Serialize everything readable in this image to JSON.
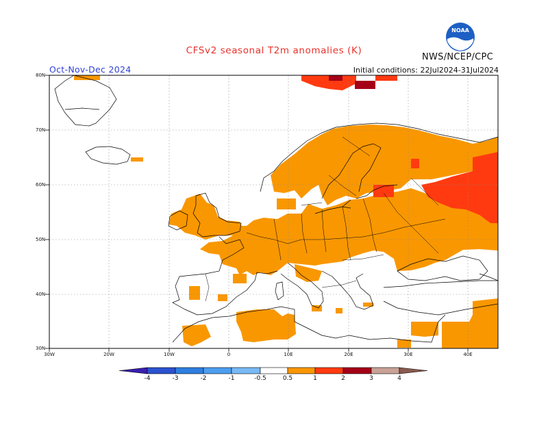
{
  "header": {
    "title": "CFSv2 seasonal T2m anomalies (K)",
    "period": "Oct-Nov-Dec 2024",
    "initial_conditions": "Initial conditions: 22Jul2024-31Jul2024",
    "agency": "NWS/NCEP/CPC",
    "logo_text": "NOAA"
  },
  "map": {
    "lat_labels": [
      "80N",
      "70N",
      "60N",
      "50N",
      "40N",
      "30N"
    ],
    "lon_labels": [
      "30W",
      "20W",
      "10W",
      "0",
      "10E",
      "20E",
      "30E",
      "40E"
    ],
    "extent": {
      "lon_min": -30,
      "lon_max": 45,
      "lat_min": 30,
      "lat_max": 80
    }
  },
  "legend": {
    "labels": [
      "-4",
      "-3",
      "-2",
      "-1",
      "-0.5",
      "0.5",
      "1",
      "2",
      "3",
      "4"
    ],
    "colors": [
      "#3a1fb0",
      "#2a52cf",
      "#2f7fe0",
      "#4d9ef0",
      "#78b9f5",
      "#ffffff",
      "#f99700",
      "#ff3a10",
      "#a50018",
      "#c9a297",
      "#8a5a50"
    ],
    "colors_low_tip": "#23128a"
  },
  "colors": {
    "anomaly_05_1": "#f99700",
    "anomaly_1_2": "#ff3a10",
    "anomaly_2_3": "#a50018",
    "title_red": "#e8322b",
    "period_blue": "#2f3fd6"
  }
}
